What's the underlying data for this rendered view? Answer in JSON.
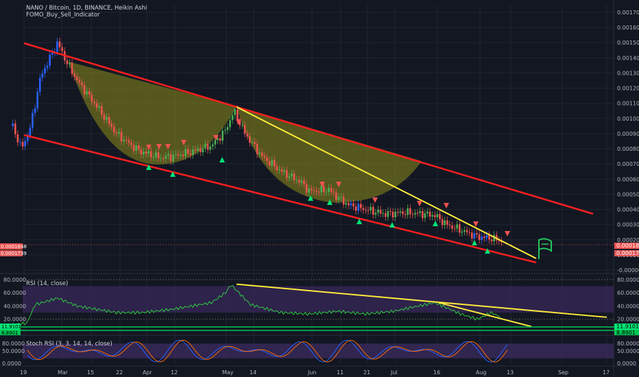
{
  "header": {
    "title": "NANO / Bitcoin, 1D, BINANCE, Heikin Ashi",
    "indicator": "FOMO_Buy_Sell_Indicator"
  },
  "colors": {
    "background": "#131722",
    "grid": "#1f2433",
    "bull": "#26a69a",
    "bull_bright": "#4caf50",
    "bear": "#ef5350",
    "blue": "#2962ff",
    "trend_red": "#ff1f1f",
    "trend_yellow": "#ffeb3b",
    "cup_fill": "#8c8c1a",
    "rsi_line": "#2ecc40",
    "rsi_band": "#3a2a5c",
    "stoch_k": "#2962ff",
    "stoch_d": "#ff6d00",
    "green_tag": "#00e676",
    "red_tag": "#ef5350"
  },
  "price_axis": {
    "ticks": [
      "0.0017000",
      "0.0016000",
      "0.0015000",
      "0.0014000",
      "0.0013000",
      "0.0012000",
      "0.0011000",
      "0.0010000",
      "0.0009000",
      "0.0008000",
      "0.0007000",
      "0.0006000",
      "0.0005000",
      "0.0004000",
      "0.0003000",
      "0.0002000",
      "0.0001000",
      "-0.0000000"
    ],
    "ylim": [
      0.0,
      0.0017
    ],
    "last_price_tag": "0.0001848",
    "second_price_tag": "0.0001739",
    "left_tag_1": "0.0001848",
    "left_tag_2": "0.0001739"
  },
  "time_axis": [
    "19",
    "Mar",
    "15",
    "22",
    "Apr",
    "12",
    "May",
    "14",
    "Jun",
    "11",
    "21",
    "Jul",
    "16",
    "Aug",
    "13",
    "Sep",
    "17"
  ],
  "rsi": {
    "label": "RSI (14, close)",
    "ticks": [
      "80.0000",
      "60.0000",
      "40.0000",
      "20.0000"
    ],
    "current_value_1": "11.9101",
    "current_value_2": "8.8901",
    "left_tag_1": "11.9101",
    "left_tag_2": "8.8901"
  },
  "stoch": {
    "label": "Stoch RSI (3, 3, 14, 14, close)",
    "ticks": [
      "80.0000",
      "50.0000",
      "0.0000"
    ]
  },
  "chart_data": {
    "type": "candlestick",
    "title": "NANO / Bitcoin, 1D, BINANCE, Heikin Ashi",
    "x_range": [
      "Feb 14",
      "Sep 20"
    ],
    "ylim": [
      0.0,
      0.0017
    ],
    "approx_close_series": [
      {
        "x": "Feb 15",
        "y": 0.00095
      },
      {
        "x": "Feb 18",
        "y": 0.0008
      },
      {
        "x": "Feb 21",
        "y": 0.00092
      },
      {
        "x": "Feb 25",
        "y": 0.00128
      },
      {
        "x": "Mar 1",
        "y": 0.0015
      },
      {
        "x": "Mar 4",
        "y": 0.00138
      },
      {
        "x": "Mar 8",
        "y": 0.00125
      },
      {
        "x": "Mar 15",
        "y": 0.00108
      },
      {
        "x": "Mar 22",
        "y": 0.0009
      },
      {
        "x": "Mar 29",
        "y": 0.0008
      },
      {
        "x": "Apr 1",
        "y": 0.00078
      },
      {
        "x": "Apr 8",
        "y": 0.00074
      },
      {
        "x": "Apr 12",
        "y": 0.00075
      },
      {
        "x": "Apr 19",
        "y": 0.00078
      },
      {
        "x": "Apr 26",
        "y": 0.00082
      },
      {
        "x": "May 1",
        "y": 0.00092
      },
      {
        "x": "May 4",
        "y": 0.00105
      },
      {
        "x": "May 8",
        "y": 0.0009
      },
      {
        "x": "May 14",
        "y": 0.00075
      },
      {
        "x": "May 21",
        "y": 0.00065
      },
      {
        "x": "May 28",
        "y": 0.00058
      },
      {
        "x": "Jun 1",
        "y": 0.00052
      },
      {
        "x": "Jun 8",
        "y": 0.00053
      },
      {
        "x": "Jun 11",
        "y": 0.00048
      },
      {
        "x": "Jun 15",
        "y": 0.00043
      },
      {
        "x": "Jun 21",
        "y": 0.0004
      },
      {
        "x": "Jun 28",
        "y": 0.00037
      },
      {
        "x": "Jul 5",
        "y": 0.00038
      },
      {
        "x": "Jul 12",
        "y": 0.00037
      },
      {
        "x": "Jul 16",
        "y": 0.00036
      },
      {
        "x": "Jul 20",
        "y": 0.0003
      },
      {
        "x": "Jul 27",
        "y": 0.00025
      },
      {
        "x": "Aug 1",
        "y": 0.00022
      },
      {
        "x": "Aug 6",
        "y": 0.00021
      },
      {
        "x": "Aug 10",
        "y": 0.00019
      }
    ],
    "rsi_series": [
      {
        "x": "Feb 15",
        "y": 12
      },
      {
        "x": "Feb 20",
        "y": 14
      },
      {
        "x": "Feb 23",
        "y": 42
      },
      {
        "x": "Mar 1",
        "y": 52
      },
      {
        "x": "Mar 8",
        "y": 40
      },
      {
        "x": "Mar 15",
        "y": 35
      },
      {
        "x": "Mar 22",
        "y": 30
      },
      {
        "x": "Apr 1",
        "y": 30
      },
      {
        "x": "Apr 12",
        "y": 35
      },
      {
        "x": "Apr 26",
        "y": 45
      },
      {
        "x": "May 1",
        "y": 60
      },
      {
        "x": "May 3",
        "y": 72
      },
      {
        "x": "May 10",
        "y": 42
      },
      {
        "x": "May 21",
        "y": 30
      },
      {
        "x": "Jun 1",
        "y": 28
      },
      {
        "x": "Jun 11",
        "y": 32
      },
      {
        "x": "Jun 21",
        "y": 28
      },
      {
        "x": "Jul 1",
        "y": 32
      },
      {
        "x": "Jul 10",
        "y": 40
      },
      {
        "x": "Jul 16",
        "y": 45
      },
      {
        "x": "Jul 25",
        "y": 28
      },
      {
        "x": "Aug 1",
        "y": 20
      },
      {
        "x": "Aug 6",
        "y": 30
      },
      {
        "x": "Aug 10",
        "y": 22
      }
    ]
  }
}
